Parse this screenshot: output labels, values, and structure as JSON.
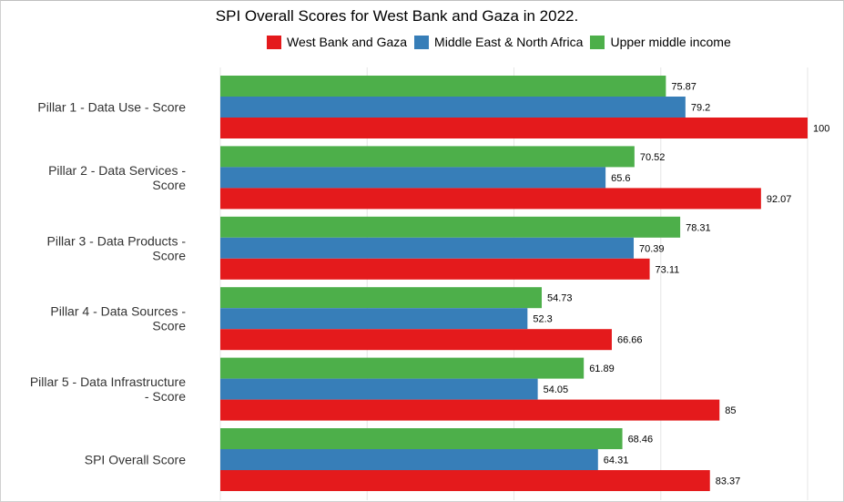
{
  "chart_data": {
    "type": "bar",
    "orientation": "horizontal",
    "title": "SPI Overall Scores for West Bank and Gaza in 2022.",
    "categories": [
      [
        "Pillar 1 - Data Use - Score"
      ],
      [
        "Pillar 2 - Data Services -",
        "Score"
      ],
      [
        "Pillar 3 - Data Products -",
        "Score"
      ],
      [
        "Pillar 4 - Data Sources -",
        "Score"
      ],
      [
        "Pillar 5 - Data Infrastructure",
        "- Score"
      ],
      [
        "SPI Overall Score"
      ]
    ],
    "series": [
      {
        "name": "Upper middle income",
        "color": "#4daf4a",
        "values": [
          75.87,
          70.52,
          78.31,
          54.73,
          61.89,
          68.46
        ],
        "labels": [
          "75.87",
          "70.52",
          "78.31",
          "54.73",
          "61.89",
          "68.46"
        ]
      },
      {
        "name": "Middle East & North Africa",
        "color": "#377eb8",
        "values": [
          79.2,
          65.6,
          70.39,
          52.3,
          54.05,
          64.31
        ],
        "labels": [
          "79.2",
          "65.6",
          "70.39",
          "52.3",
          "54.05",
          "64.31"
        ]
      },
      {
        "name": "West Bank and Gaza",
        "color": "#e41a1c",
        "values": [
          100,
          92.07,
          73.11,
          66.66,
          85,
          83.37
        ],
        "labels": [
          "100",
          "92.07",
          "73.11",
          "66.66",
          "85",
          "83.37"
        ]
      }
    ],
    "legend_order": [
      "West Bank and Gaza",
      "Middle East & North Africa",
      "Upper middle income"
    ],
    "xlim": [
      0,
      100
    ],
    "grid": true,
    "legend_position": "top"
  }
}
